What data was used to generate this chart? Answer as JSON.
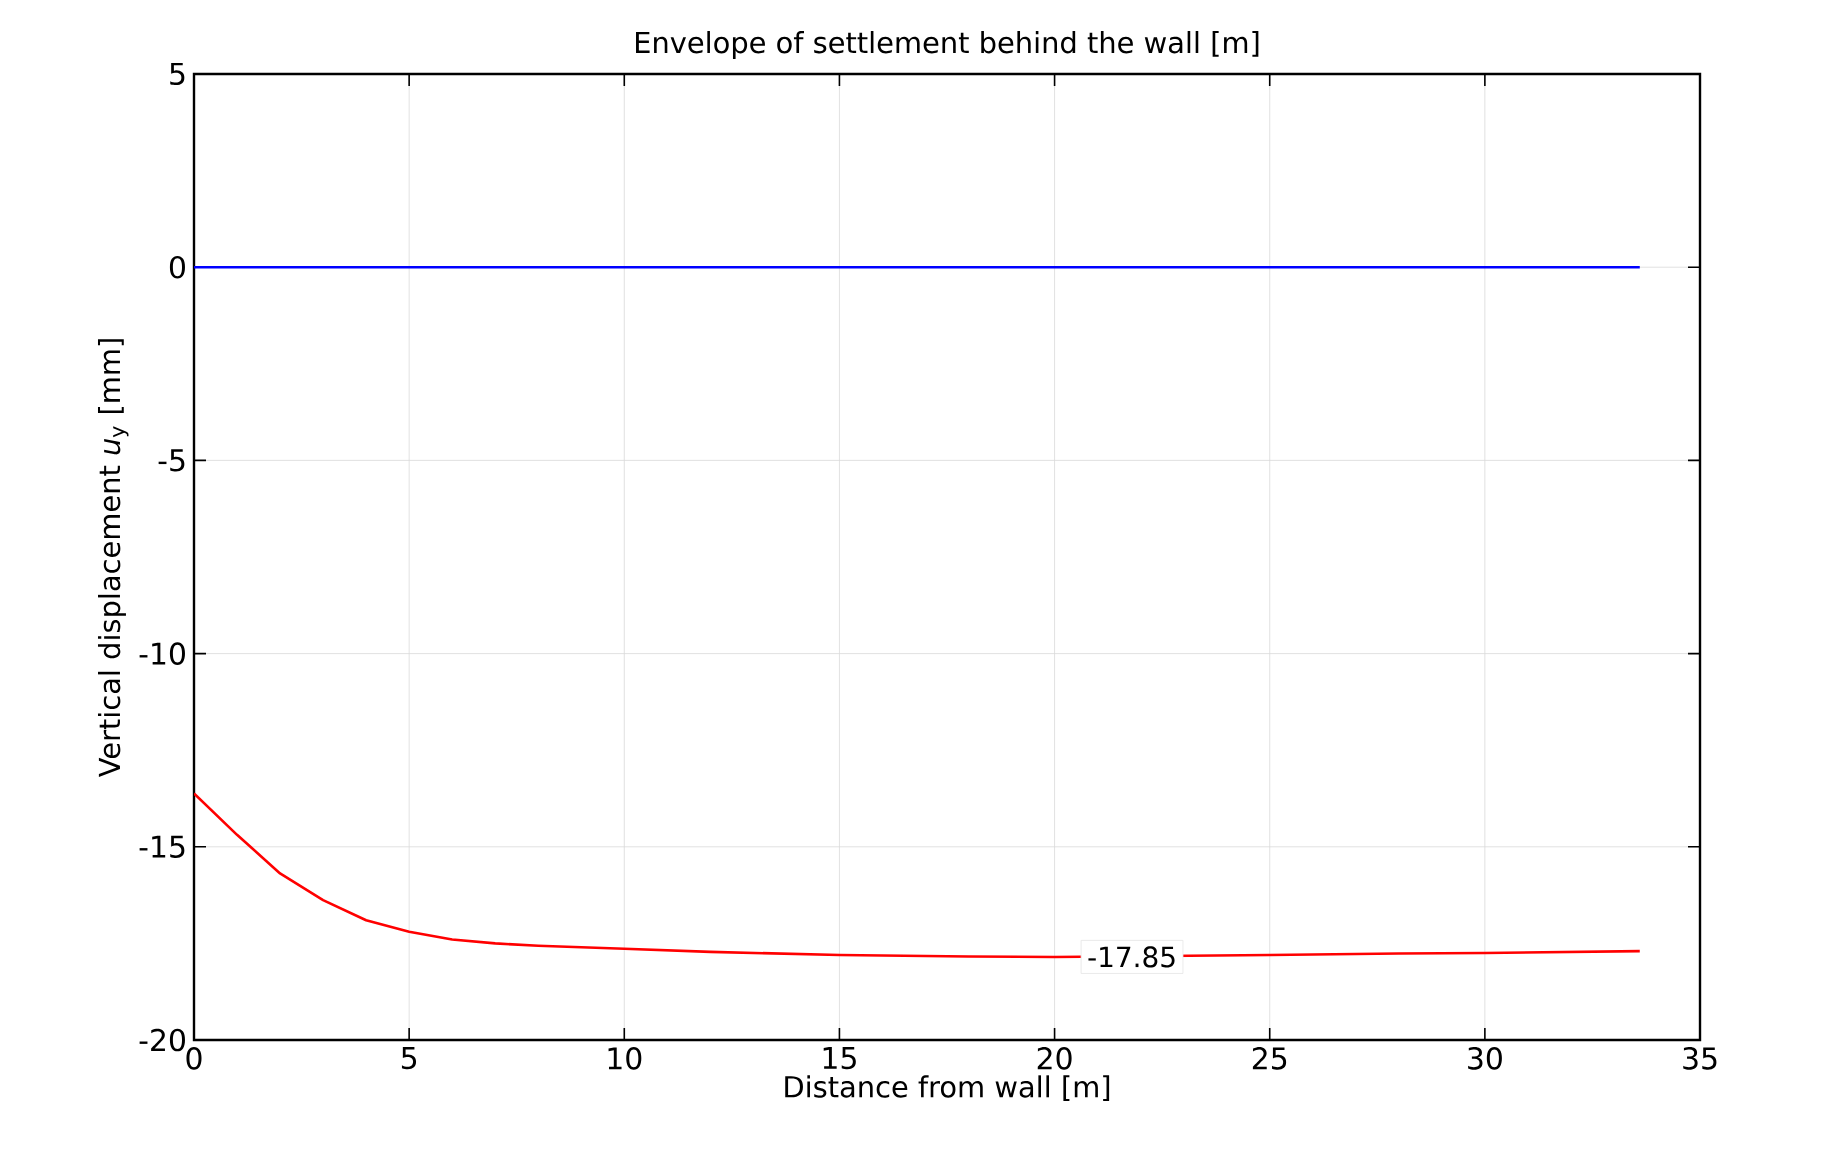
{
  "chart_data": {
    "type": "line",
    "title": "Envelope of settlement behind the wall [m]",
    "xlabel": "Distance from wall [m]",
    "ylabel": "Vertical displacement  *u*$_{y}$ [mm]",
    "series": [
      {
        "color": "#0000ff",
        "x": [
          0,
          33.6
        ],
        "values": [
          0,
          0
        ]
      },
      {
        "color": "#ff0000",
        "x": [
          0,
          1,
          2,
          3,
          4,
          5,
          6,
          7,
          8,
          10,
          12,
          15,
          18,
          20,
          25,
          28,
          30,
          33.6
        ],
        "values": [
          -13.62,
          -14.69,
          -15.69,
          -16.38,
          -16.9,
          -17.2,
          -17.4,
          -17.5,
          -17.56,
          -17.64,
          -17.72,
          -17.8,
          -17.84,
          -17.85,
          -17.8,
          -17.76,
          -17.75,
          -17.7
        ]
      }
    ],
    "annotations": [
      {
        "text": "-17.85",
        "x": 21.8,
        "y": -17.85
      }
    ],
    "xlim": [
      0,
      35
    ],
    "ylim": [
      -20,
      5
    ],
    "xticks": [
      0,
      5,
      10,
      15,
      20,
      25,
      30,
      35
    ],
    "yticks": [
      -20,
      -15,
      -10,
      -5,
      0,
      5
    ],
    "grid": true,
    "marker": "none",
    "line_style": "solid"
  }
}
